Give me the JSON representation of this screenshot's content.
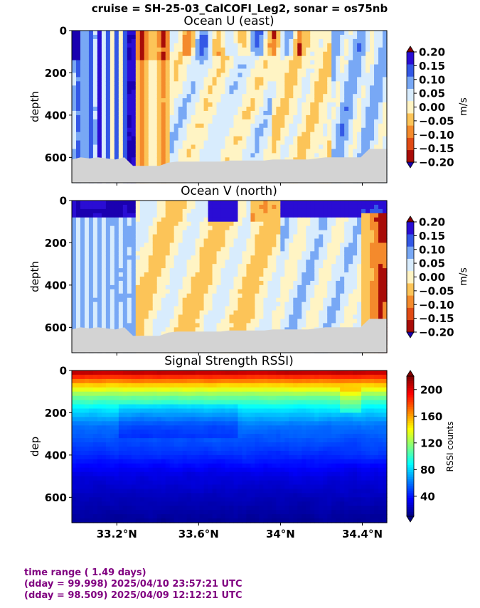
{
  "figure": {
    "suptitle": "cruise = SH-25-03_CalCOFI_Leg2,  sonar = os75nb"
  },
  "chart_data": [
    {
      "type": "heatmap",
      "title": "Ocean U (east)",
      "ylabel": "depth",
      "yticks": [
        "0",
        "200",
        "400",
        "600"
      ],
      "ylim": [
        720,
        0
      ],
      "xlim": [
        32.98,
        34.52
      ],
      "x_tick_labels": [],
      "colorbar": {
        "label": "m/s",
        "tick_labels": [
          "0.20",
          "0.15",
          "0.10",
          "0.05",
          "0.00",
          "−0.05",
          "−0.10",
          "−0.15",
          "−0.20"
        ],
        "colors": [
          "#2a0dd4",
          "#3358e6",
          "#78a8f5",
          "#d8ecfd",
          "#fff4c4",
          "#fcc458",
          "#f48a2c",
          "#e04a14",
          "#a80c08"
        ],
        "range": [
          -0.2,
          0.2
        ],
        "extend": "both"
      },
      "bottom_depth": [
        610,
        600,
        605,
        600,
        605,
        610,
        600,
        640,
        640,
        640,
        640,
        625,
        620,
        620,
        620,
        620,
        620,
        620,
        615,
        615,
        615,
        615,
        615,
        610,
        610,
        610,
        610,
        610,
        605,
        600,
        600,
        600,
        600,
        600,
        560,
        560,
        560
      ]
    },
    {
      "type": "heatmap",
      "title": "Ocean V (north)",
      "ylabel": "depth",
      "yticks": [
        "0",
        "200",
        "400",
        "600"
      ],
      "ylim": [
        720,
        0
      ],
      "xlim": [
        32.98,
        34.52
      ],
      "x_tick_labels": [],
      "colorbar": {
        "label": "m/s",
        "tick_labels": [
          "0.20",
          "0.15",
          "0.10",
          "0.05",
          "0.00",
          "−0.05",
          "−0.10",
          "−0.15",
          "−0.20"
        ],
        "colors": [
          "#2a0dd4",
          "#3358e6",
          "#78a8f5",
          "#d8ecfd",
          "#fff4c4",
          "#fcc458",
          "#f48a2c",
          "#e04a14",
          "#a80c08"
        ],
        "range": [
          -0.2,
          0.2
        ],
        "extend": "both"
      },
      "bottom_depth": [
        610,
        600,
        605,
        600,
        605,
        610,
        600,
        640,
        640,
        640,
        640,
        625,
        620,
        620,
        620,
        620,
        620,
        620,
        615,
        615,
        615,
        615,
        615,
        610,
        610,
        610,
        610,
        610,
        605,
        600,
        600,
        600,
        600,
        600,
        560,
        560,
        560
      ]
    },
    {
      "type": "heatmap",
      "title": "Signal Strength RSSI)",
      "ylabel": "dep",
      "yticks": [
        "0",
        "200",
        "400",
        "600"
      ],
      "ylim": [
        720,
        0
      ],
      "xlim": [
        32.98,
        34.52
      ],
      "x_tick_values": [
        33.2,
        33.6,
        34.0,
        34.4
      ],
      "x_tick_labels": [
        "33.2°N",
        "33.6°N",
        "34°N",
        "34.4°N"
      ],
      "colorbar": {
        "label": "RSSI counts",
        "tick_labels": [
          "200",
          "160",
          "120",
          "80",
          "40"
        ],
        "tick_values": [
          200,
          160,
          120,
          80,
          40
        ],
        "range": [
          10,
          220
        ],
        "colormap": "jet",
        "extend": "both"
      },
      "rssi_profile": [
        [
          0,
          215
        ],
        [
          30,
          185
        ],
        [
          70,
          150
        ],
        [
          120,
          115
        ],
        [
          180,
          85
        ],
        [
          260,
          60
        ],
        [
          400,
          45
        ],
        [
          500,
          30
        ],
        [
          600,
          22
        ],
        [
          720,
          15
        ]
      ]
    }
  ],
  "footer": {
    "line1": "time range ( 1.49 days)",
    "line2": "(dday = 99.998) 2025/04/10 23:57:21 UTC",
    "line3": "(dday = 98.509) 2025/04/09 12:12:21 UTC"
  }
}
